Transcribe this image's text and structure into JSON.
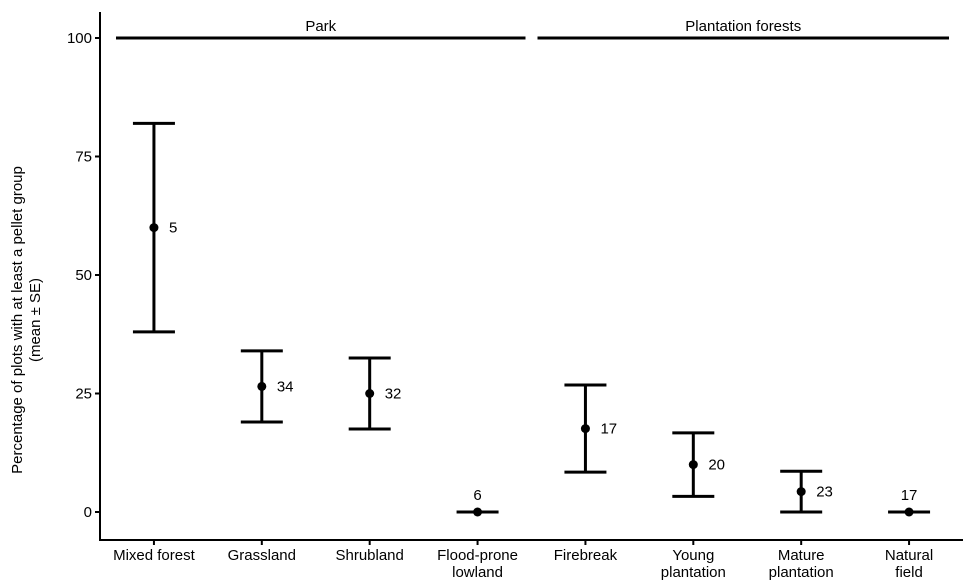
{
  "chart_data": {
    "type": "scatter",
    "title": "",
    "xlabel": "",
    "ylabel": "Percentage of plots with at least a pellet group",
    "ylabel_sub": "(mean ± SE)",
    "ylim": [
      0,
      100
    ],
    "yticks": [
      0,
      25,
      50,
      75,
      100
    ],
    "grid": false,
    "groups": [
      {
        "label": "Park",
        "categories": [
          "Mixed forest",
          "Grassland",
          "Shrubland",
          "Flood-prone lowland"
        ]
      },
      {
        "label": "Plantation forests",
        "categories": [
          "Firebreak",
          "Young plantation",
          "Mature plantation",
          "Natural field"
        ]
      }
    ],
    "categories": [
      {
        "label": "Mixed forest",
        "lines": [
          "Mixed forest"
        ],
        "mean": 60,
        "lower": 38,
        "upper": 82,
        "n": "5"
      },
      {
        "label": "Grassland",
        "lines": [
          "Grassland"
        ],
        "mean": 26.5,
        "lower": 19,
        "upper": 34,
        "n": "34"
      },
      {
        "label": "Shrubland",
        "lines": [
          "Shrubland"
        ],
        "mean": 25,
        "lower": 17.5,
        "upper": 32.5,
        "n": "32"
      },
      {
        "label": "Flood-prone lowland",
        "lines": [
          "Flood-prone",
          "lowland"
        ],
        "mean": 0,
        "lower": 0,
        "upper": 0,
        "n": "6"
      },
      {
        "label": "Firebreak",
        "lines": [
          "Firebreak"
        ],
        "mean": 17.6,
        "lower": 8.4,
        "upper": 26.8,
        "n": "17"
      },
      {
        "label": "Young plantation",
        "lines": [
          "Young",
          "plantation"
        ],
        "mean": 10,
        "lower": 3.3,
        "upper": 16.7,
        "n": "20"
      },
      {
        "label": "Mature plantation",
        "lines": [
          "Mature",
          "plantation"
        ],
        "mean": 4.3,
        "lower": 0,
        "upper": 8.6,
        "n": "23"
      },
      {
        "label": "Natural field",
        "lines": [
          "Natural",
          "field"
        ],
        "mean": 0,
        "lower": 0,
        "upper": 0,
        "n": "17"
      }
    ]
  }
}
